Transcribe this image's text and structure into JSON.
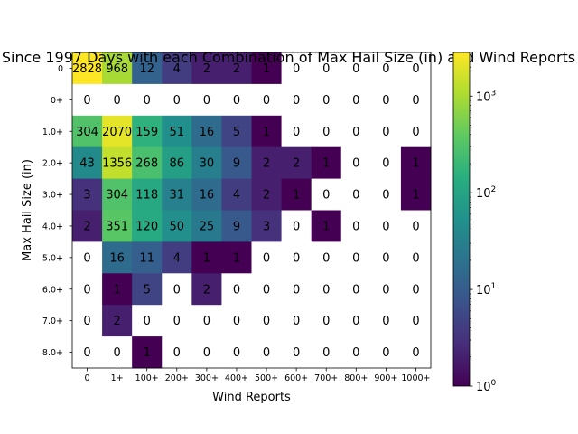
{
  "chart_data": {
    "type": "heatmap",
    "title": "Since 1997 Days with each Combination of Max Hail Size (in) and Wind Reports",
    "xlabel": "Wind Reports",
    "ylabel": "Max Hail Size (in)",
    "x_categories": [
      "0",
      "1+",
      "100+",
      "200+",
      "300+",
      "400+",
      "500+",
      "600+",
      "700+",
      "800+",
      "900+",
      "1000+"
    ],
    "y_categories": [
      "0",
      "0+",
      "1.0+",
      "2.0+",
      "3.0+",
      "4.0+",
      "5.0+",
      "6.0+",
      "7.0+",
      "8.0+"
    ],
    "values": [
      [
        2828,
        968,
        12,
        4,
        2,
        2,
        1,
        0,
        0,
        0,
        0,
        0
      ],
      [
        0,
        0,
        0,
        0,
        0,
        0,
        0,
        0,
        0,
        0,
        0,
        0
      ],
      [
        304,
        2070,
        159,
        51,
        16,
        5,
        1,
        0,
        0,
        0,
        0,
        0
      ],
      [
        43,
        1356,
        268,
        86,
        30,
        9,
        2,
        2,
        1,
        0,
        0,
        1
      ],
      [
        3,
        304,
        118,
        31,
        16,
        4,
        2,
        1,
        0,
        0,
        0,
        1
      ],
      [
        2,
        351,
        120,
        50,
        25,
        9,
        3,
        0,
        1,
        0,
        0,
        0
      ],
      [
        0,
        16,
        11,
        4,
        1,
        1,
        0,
        0,
        0,
        0,
        0,
        0
      ],
      [
        0,
        1,
        5,
        0,
        2,
        0,
        0,
        0,
        0,
        0,
        0,
        0
      ],
      [
        0,
        2,
        0,
        0,
        0,
        0,
        0,
        0,
        0,
        0,
        0,
        0
      ],
      [
        0,
        0,
        1,
        0,
        0,
        0,
        0,
        0,
        0,
        0,
        0,
        0
      ]
    ],
    "color_scale": "log",
    "colormap": "viridis",
    "color_range": [
      1,
      2828
    ],
    "colorbar_ticks": [
      {
        "value": 1,
        "base": "10",
        "exp": "0"
      },
      {
        "value": 10,
        "base": "10",
        "exp": "1"
      },
      {
        "value": 100,
        "base": "10",
        "exp": "2"
      },
      {
        "value": 1000,
        "base": "10",
        "exp": "3"
      }
    ],
    "zero_color": "#ffffff"
  }
}
